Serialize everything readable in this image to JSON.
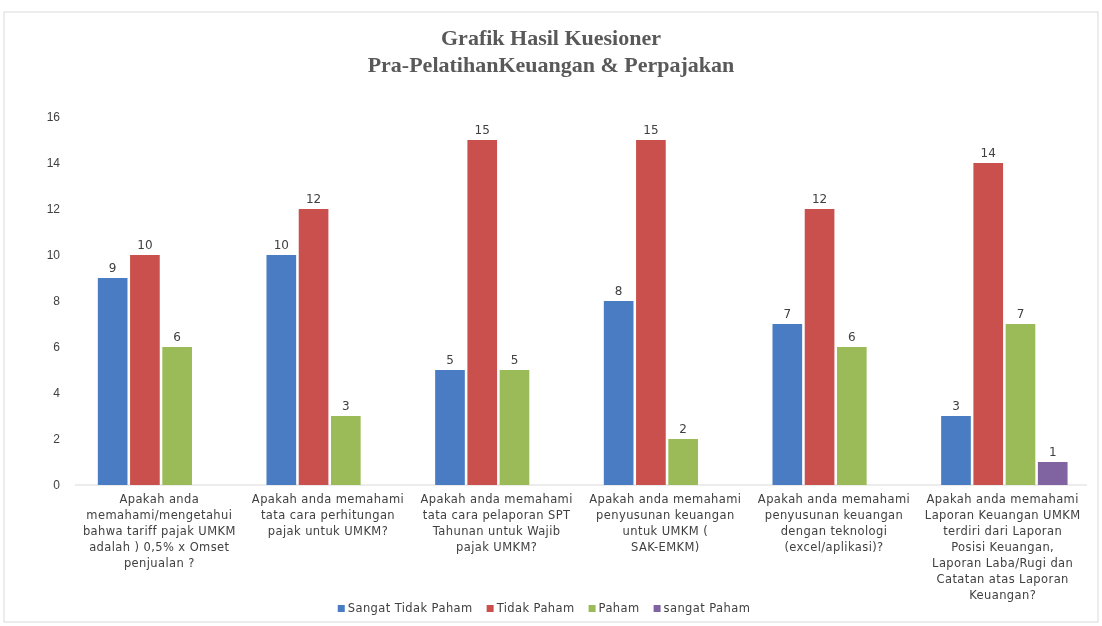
{
  "chart_data": {
    "type": "bar",
    "title": "Grafik Hasil Kuesioner\nPra-PelatihanKeuangan & Perpajakan",
    "categories": [
      "Apakah anda memahami/mengetahui bahwa tariff pajak UMKM adalah ) 0,5% x Omset penjualan ?",
      "Apakah anda memahami tata cara perhitungan pajak untuk UMKM?",
      "Apakah anda memahami tata cara pelaporan SPT Tahunan untuk Wajib pajak UMKM?",
      "Apakah anda memahami penyusunan keuangan untuk UMKM ( SAK-EMKM)",
      "Apakah anda memahami penyusunan keuangan dengan teknologi (excel/aplikasi)?",
      "Apakah anda memahami Laporan Keuangan UMKM terdiri dari Laporan Posisi Keuangan, Laporan Laba/Rugi dan Catatan atas Laporan Keuangan?"
    ],
    "series": [
      {
        "name": "Sangat Tidak Paham",
        "color": "#4a7cc4",
        "values": [
          9,
          10,
          5,
          8,
          7,
          3
        ]
      },
      {
        "name": "Tidak Paham",
        "color": "#c9504d",
        "values": [
          10,
          12,
          15,
          15,
          12,
          14
        ]
      },
      {
        "name": "Paham",
        "color": "#9bbb59",
        "values": [
          6,
          3,
          5,
          2,
          6,
          7
        ]
      },
      {
        "name": "sangat Paham",
        "color": "#8064a2",
        "values": [
          null,
          null,
          null,
          null,
          null,
          1
        ]
      }
    ],
    "ylim": [
      0,
      16
    ],
    "yticks": [
      0,
      2,
      4,
      6,
      8,
      10,
      12,
      14,
      16
    ],
    "grid": false,
    "legend": "bottom",
    "data_labels": true
  }
}
